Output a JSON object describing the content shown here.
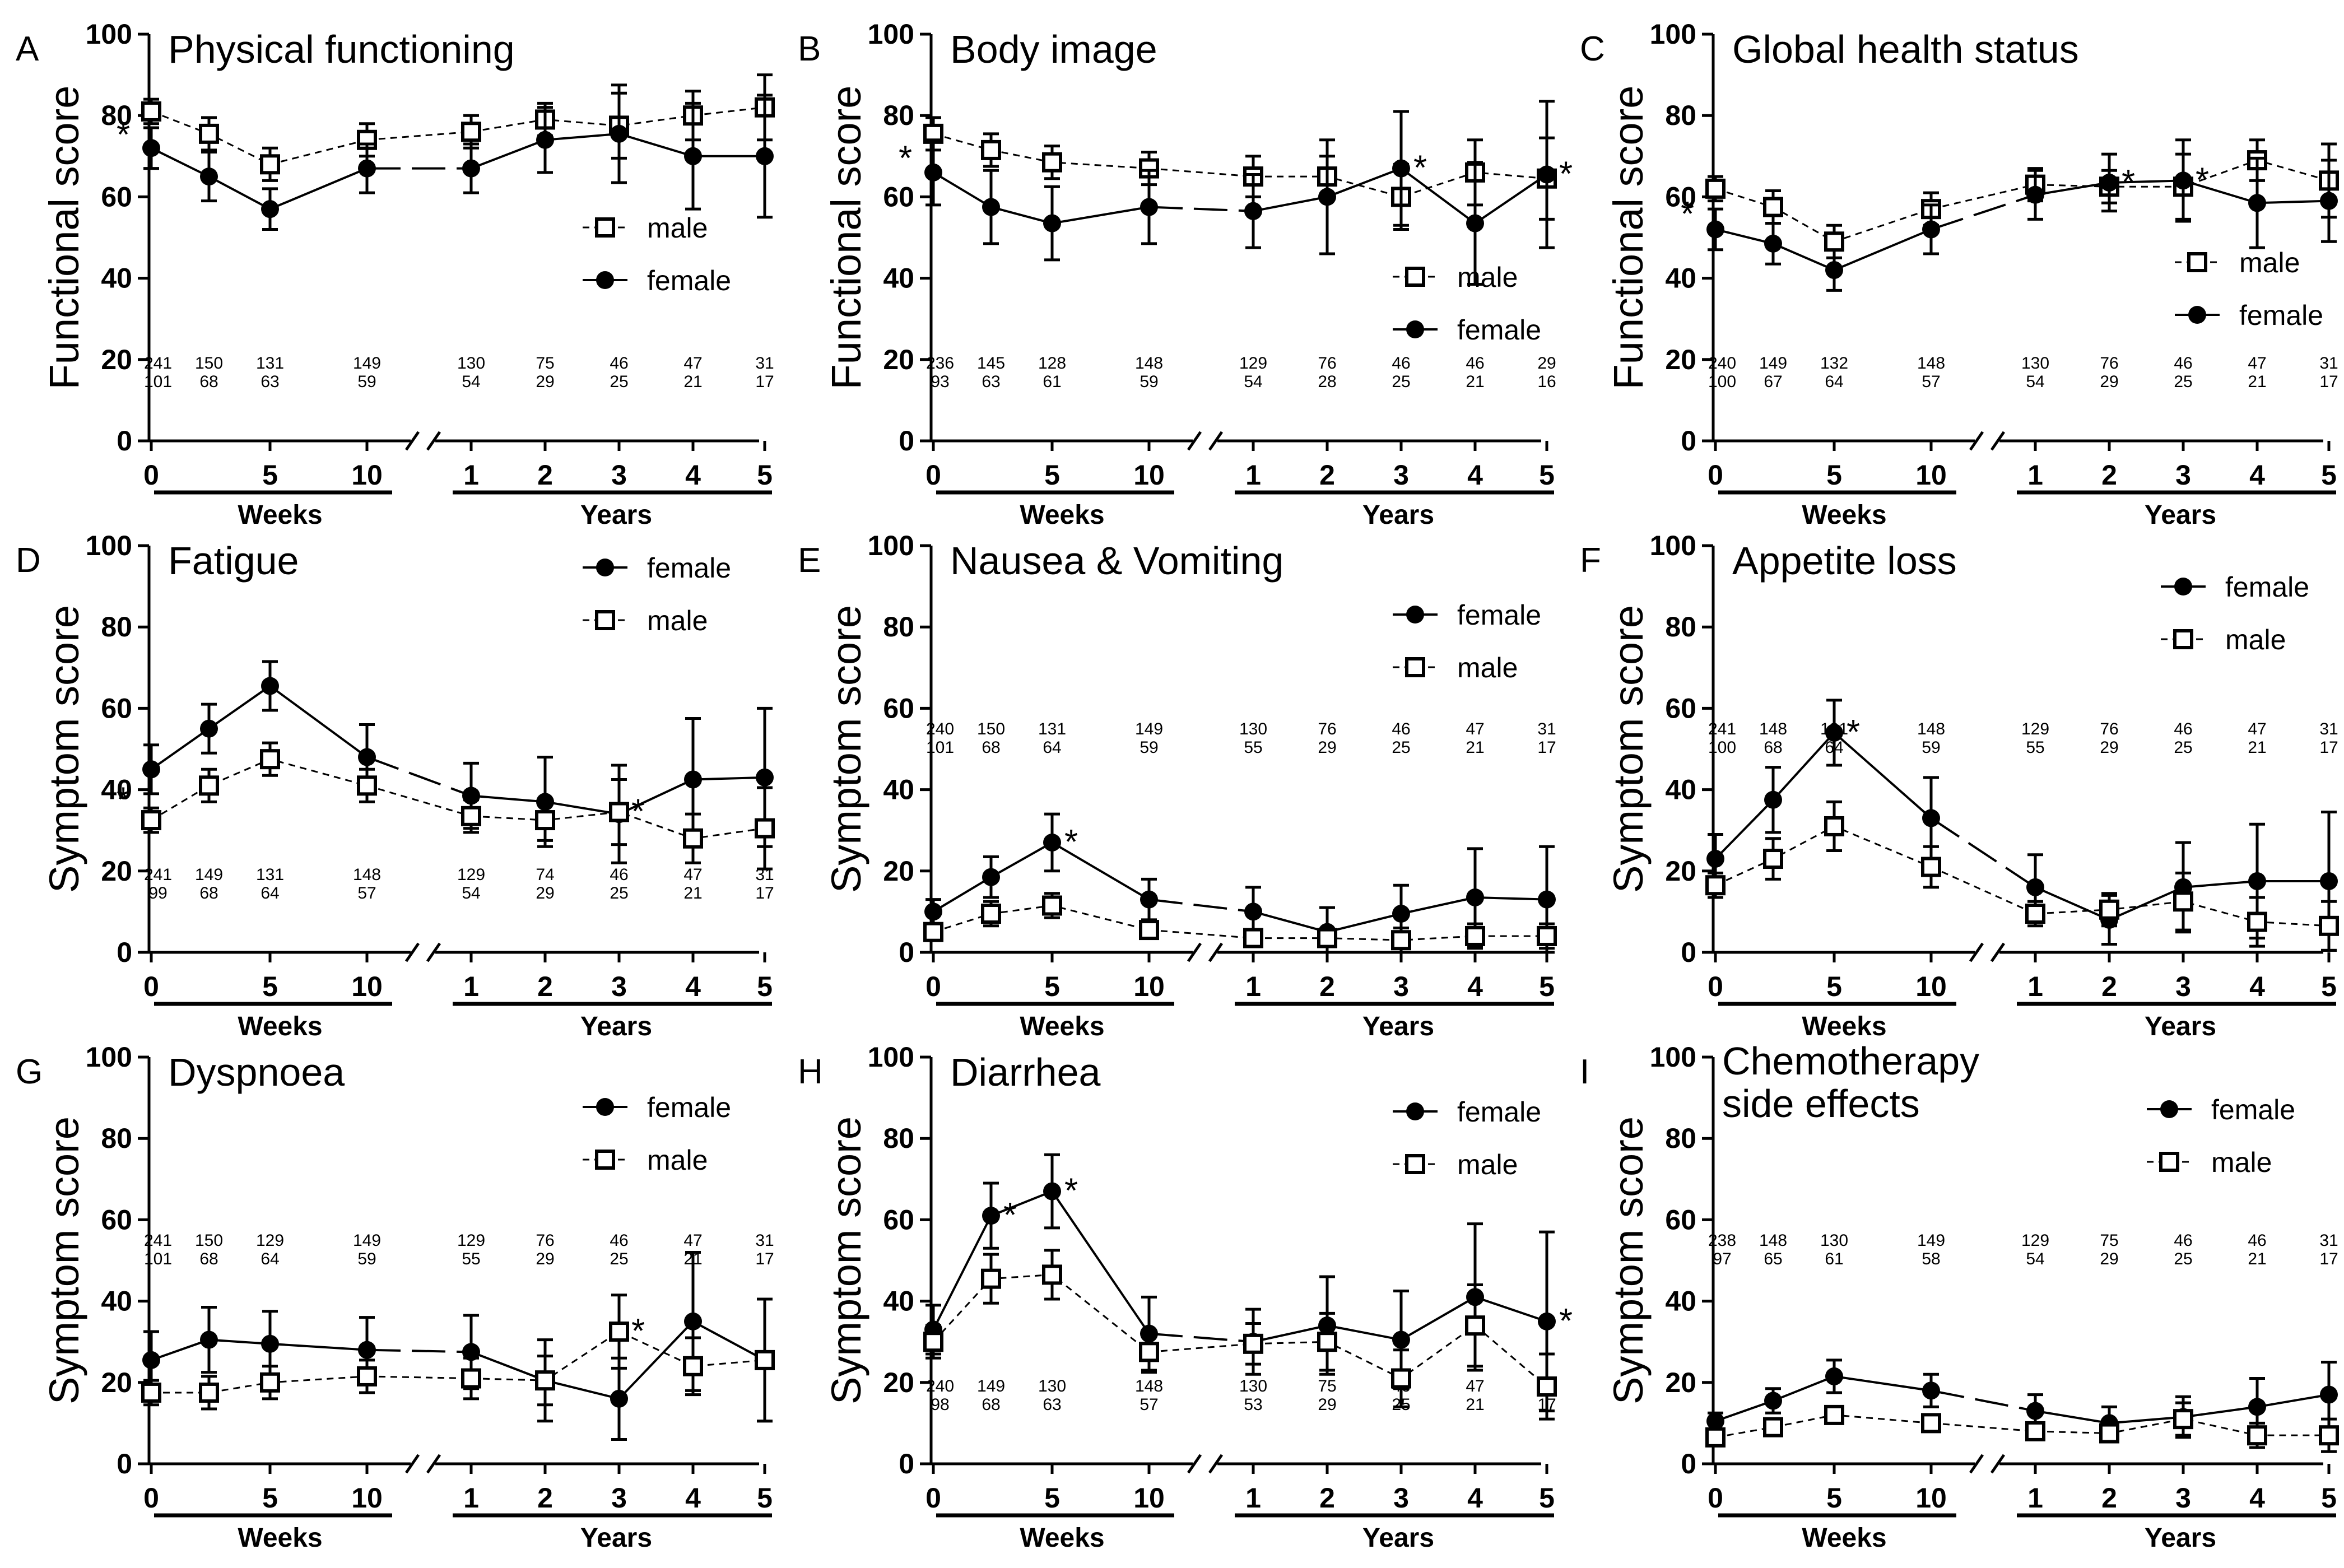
{
  "figure": {
    "week_label": "Weeks",
    "year_label": "Years",
    "week_ticks": [
      "0",
      "5",
      "10"
    ],
    "year_ticks": [
      "1",
      "2",
      "3",
      "4",
      "5"
    ],
    "y_ticks": [
      "0",
      "20",
      "40",
      "60",
      "80",
      "100"
    ],
    "series_names": {
      "male": "male",
      "female": "female"
    }
  },
  "chart_data": [
    {
      "type": "line",
      "panel": "A",
      "title": "Physical functioning",
      "ylabel": "Functional score",
      "ylim": [
        0,
        100
      ],
      "legend_order": [
        "male",
        "female"
      ],
      "legend_position": "right-middle",
      "x_timepoints": [
        "week 0",
        "week 2",
        "week 5",
        "week 10",
        "year 1",
        "year 2",
        "year 3",
        "year 4",
        "year 5"
      ],
      "series": [
        {
          "name": "male",
          "values": [
            81,
            75.5,
            68,
            74,
            76,
            79,
            77.5,
            80,
            82
          ],
          "err": [
            3,
            4,
            4,
            4,
            4,
            4,
            8,
            6,
            8
          ]
        },
        {
          "name": "female",
          "values": [
            72,
            65,
            57,
            67,
            67,
            74,
            75.5,
            70,
            70
          ],
          "err": [
            5,
            6,
            5,
            6,
            6,
            8,
            12,
            13,
            15
          ]
        }
      ],
      "n_male": [
        "241",
        "150",
        "131",
        "149",
        "130",
        "75",
        "46",
        "47",
        "31"
      ],
      "n_female": [
        "101",
        "68",
        "63",
        "59",
        "54",
        "29",
        "25",
        "21",
        "17"
      ],
      "n_position": "bottom",
      "stars": [
        0
      ]
    },
    {
      "type": "line",
      "panel": "B",
      "title": "Body image",
      "ylabel": "Functional score",
      "ylim": [
        0,
        100
      ],
      "legend_order": [
        "male",
        "female"
      ],
      "legend_position": "right-lower",
      "x_timepoints": [
        "week 0",
        "week 2",
        "week 5",
        "week 10",
        "year 1",
        "year 2",
        "year 3",
        "year 4",
        "year 5"
      ],
      "series": [
        {
          "name": "male",
          "values": [
            75.5,
            71.5,
            68.5,
            67,
            65,
            65,
            60,
            66,
            64.5
          ],
          "err": [
            4,
            4,
            4,
            4,
            5,
            5,
            8,
            8,
            10
          ]
        },
        {
          "name": "female",
          "values": [
            66,
            57.5,
            53.5,
            57.5,
            56.5,
            60,
            67,
            53.5,
            65.5
          ],
          "err": [
            8,
            9,
            9,
            9,
            9,
            14,
            14,
            15,
            18
          ]
        }
      ],
      "n_male": [
        "236",
        "145",
        "128",
        "148",
        "129",
        "76",
        "46",
        "46",
        "29"
      ],
      "n_female": [
        "93",
        "63",
        "61",
        "59",
        "54",
        "28",
        "25",
        "21",
        "16"
      ],
      "n_position": "bottom",
      "stars": [
        0,
        6,
        8
      ]
    },
    {
      "type": "line",
      "panel": "C",
      "title": "Global health status",
      "ylabel": "Functional score",
      "ylim": [
        0,
        100
      ],
      "legend_order": [
        "male",
        "female"
      ],
      "legend_position": "right-lower",
      "x_timepoints": [
        "week 0",
        "week 2",
        "week 5",
        "week 10",
        "year 1",
        "year 2",
        "year 3",
        "year 4",
        "year 5"
      ],
      "series": [
        {
          "name": "male",
          "values": [
            62,
            57.5,
            49,
            57,
            63,
            62.5,
            62.5,
            69,
            64
          ],
          "err": [
            3,
            4,
            4,
            4,
            4,
            4,
            8,
            5,
            9
          ]
        },
        {
          "name": "female",
          "values": [
            52,
            48.5,
            42,
            52,
            60.5,
            63.5,
            64,
            58.5,
            59
          ],
          "err": [
            5,
            5,
            5,
            6,
            6,
            7,
            10,
            11,
            10
          ]
        }
      ],
      "n_male": [
        "240",
        "149",
        "132",
        "148",
        "130",
        "76",
        "46",
        "47",
        "31"
      ],
      "n_female": [
        "100",
        "67",
        "64",
        "57",
        "54",
        "29",
        "25",
        "21",
        "17"
      ],
      "n_position": "bottom",
      "stars": [
        0,
        5,
        6
      ]
    },
    {
      "type": "line",
      "panel": "D",
      "title": "Fatigue",
      "ylabel": "Symptom score",
      "ylim": [
        0,
        100
      ],
      "legend_order": [
        "female",
        "male"
      ],
      "legend_position": "top-right",
      "x_timepoints": [
        "week 0",
        "week 2",
        "week 5",
        "week 10",
        "year 1",
        "year 2",
        "year 3",
        "year 4",
        "year 5"
      ],
      "series": [
        {
          "name": "female",
          "values": [
            45,
            55,
            65.5,
            48,
            38.5,
            37,
            34,
            42.5,
            43
          ],
          "err": [
            6,
            6,
            6,
            8,
            8,
            11,
            12,
            15,
            17
          ]
        },
        {
          "name": "male",
          "values": [
            32.5,
            41,
            47.5,
            41,
            33.5,
            32.5,
            34.5,
            28,
            30.5
          ],
          "err": [
            3,
            4,
            4,
            4,
            4,
            5,
            8,
            6,
            10
          ]
        }
      ],
      "n_male": [
        "241",
        "149",
        "131",
        "148",
        "129",
        "74",
        "46",
        "47",
        "31"
      ],
      "n_female": [
        "99",
        "68",
        "64",
        "57",
        "54",
        "29",
        "25",
        "21",
        "17"
      ],
      "n_position": "bottom",
      "stars": [
        0,
        6
      ]
    },
    {
      "type": "line",
      "panel": "E",
      "title": "Nausea & Vomiting",
      "ylabel": "Symptom score",
      "ylim": [
        0,
        100
      ],
      "legend_order": [
        "female",
        "male"
      ],
      "legend_position": "top-right",
      "x_timepoints": [
        "week 0",
        "week 2",
        "week 5",
        "week 10",
        "year 1",
        "year 2",
        "year 3",
        "year 4",
        "year 5"
      ],
      "series": [
        {
          "name": "female",
          "values": [
            10,
            18.5,
            27,
            13,
            10,
            5,
            9.5,
            13.5,
            13
          ],
          "err": [
            3,
            5,
            7,
            5,
            6,
            6,
            7,
            12,
            13
          ]
        },
        {
          "name": "male",
          "values": [
            5,
            9.5,
            11.5,
            5.5,
            3.5,
            3.5,
            3,
            4,
            4
          ],
          "err": [
            2,
            3,
            3,
            2,
            2,
            2,
            3,
            3,
            3
          ]
        }
      ],
      "n_male": [
        "240",
        "150",
        "131",
        "149",
        "130",
        "76",
        "46",
        "47",
        "31"
      ],
      "n_female": [
        "101",
        "68",
        "64",
        "59",
        "55",
        "29",
        "25",
        "21",
        "17"
      ],
      "n_position": "middle",
      "stars": [
        2
      ]
    },
    {
      "type": "line",
      "panel": "F",
      "title": "Appetite loss",
      "ylabel": "Symptom score",
      "ylim": [
        0,
        100
      ],
      "legend_order": [
        "female",
        "male"
      ],
      "legend_position": "top-right",
      "x_timepoints": [
        "week 0",
        "week 2",
        "week 5",
        "week 10",
        "year 1",
        "year 2",
        "year 3",
        "year 4",
        "year 5"
      ],
      "series": [
        {
          "name": "female",
          "values": [
            23,
            37.5,
            54,
            33,
            16,
            8,
            16,
            17.5,
            17.5
          ],
          "err": [
            6,
            8,
            8,
            10,
            8,
            6,
            11,
            14,
            17
          ]
        },
        {
          "name": "male",
          "values": [
            16.5,
            23,
            31,
            21,
            9.5,
            10.5,
            12.5,
            7.5,
            6.5
          ],
          "err": [
            3,
            5,
            6,
            5,
            3,
            4,
            7,
            6,
            6
          ]
        }
      ],
      "n_male": [
        "241",
        "148",
        "131",
        "148",
        "129",
        "76",
        "46",
        "47",
        "31"
      ],
      "n_female": [
        "100",
        "68",
        "64",
        "59",
        "55",
        "29",
        "25",
        "21",
        "17"
      ],
      "n_position": "middle",
      "stars": [
        2
      ]
    },
    {
      "type": "line",
      "panel": "G",
      "title": "Dyspnoea",
      "ylabel": "Symptom score",
      "ylim": [
        0,
        100
      ],
      "legend_order": [
        "female",
        "male"
      ],
      "legend_position": "top-right",
      "x_timepoints": [
        "week 0",
        "week 2",
        "week 5",
        "week 10",
        "year 1",
        "year 2",
        "year 3",
        "year 4",
        "year 5"
      ],
      "series": [
        {
          "name": "female",
          "values": [
            25.5,
            30.5,
            29.5,
            28,
            27.5,
            20.5,
            16,
            35,
            25.5
          ],
          "err": [
            7,
            8,
            8,
            8,
            9,
            10,
            10,
            17,
            15
          ]
        },
        {
          "name": "male",
          "values": [
            17.5,
            17.5,
            20,
            21.5,
            21,
            20.5,
            32.5,
            24,
            25.5
          ],
          "err": [
            3,
            4,
            4,
            4,
            5,
            6,
            9,
            7,
            15
          ]
        }
      ],
      "n_male": [
        "241",
        "150",
        "129",
        "149",
        "129",
        "76",
        "46",
        "47",
        "31"
      ],
      "n_female": [
        "101",
        "68",
        "64",
        "59",
        "55",
        "29",
        "25",
        "21",
        "17"
      ],
      "n_position": "middle",
      "stars": [
        6
      ]
    },
    {
      "type": "line",
      "panel": "H",
      "title": "Diarrhea",
      "ylabel": "Symptom score",
      "ylim": [
        0,
        100
      ],
      "legend_order": [
        "female",
        "male"
      ],
      "legend_position": "top-right",
      "x_timepoints": [
        "week 0",
        "week 2",
        "week 5",
        "week 10",
        "year 1",
        "year 2",
        "year 3",
        "year 4",
        "year 5"
      ],
      "series": [
        {
          "name": "female",
          "values": [
            33,
            61,
            67,
            32,
            30,
            34,
            30.5,
            41,
            35
          ],
          "err": [
            6,
            8,
            9,
            9,
            8,
            12,
            12,
            18,
            22
          ]
        },
        {
          "name": "male",
          "values": [
            30,
            45.5,
            46.5,
            27.5,
            29.5,
            30,
            21,
            34,
            19
          ],
          "err": [
            4,
            6,
            6,
            5,
            5,
            7,
            7,
            10,
            8
          ]
        }
      ],
      "n_male": [
        "240",
        "149",
        "130",
        "148",
        "130",
        "75",
        "46",
        "47",
        "31"
      ],
      "n_female": [
        "98",
        "68",
        "63",
        "57",
        "53",
        "29",
        "25",
        "21",
        "17"
      ],
      "n_position": "bottom",
      "stars": [
        1,
        2,
        8
      ]
    },
    {
      "type": "line",
      "panel": "I",
      "title": "Chemotherapy side effects",
      "title_lines": [
        "Chemotherapy",
        "side effects"
      ],
      "ylabel": "Symptom score",
      "ylim": [
        0,
        100
      ],
      "legend_order": [
        "female",
        "male"
      ],
      "legend_position": "top-right",
      "x_timepoints": [
        "week 0",
        "week 2",
        "week 5",
        "week 10",
        "year 1",
        "year 2",
        "year 3",
        "year 4",
        "year 5"
      ],
      "series": [
        {
          "name": "female",
          "values": [
            10.5,
            15.5,
            21.5,
            18,
            13,
            10,
            11.5,
            14,
            17
          ],
          "err": [
            2,
            3,
            4,
            4,
            4,
            4,
            5,
            7,
            8
          ]
        },
        {
          "name": "male",
          "values": [
            6.5,
            9,
            12,
            10,
            8,
            7.5,
            11,
            7,
            7
          ],
          "err": [
            2,
            2,
            2,
            2,
            2,
            2,
            4,
            3,
            4
          ]
        }
      ],
      "n_male": [
        "238",
        "148",
        "130",
        "149",
        "129",
        "75",
        "46",
        "46",
        "31"
      ],
      "n_female": [
        "97",
        "65",
        "61",
        "58",
        "54",
        "29",
        "25",
        "21",
        "17"
      ],
      "n_position": "middle",
      "stars": []
    }
  ]
}
